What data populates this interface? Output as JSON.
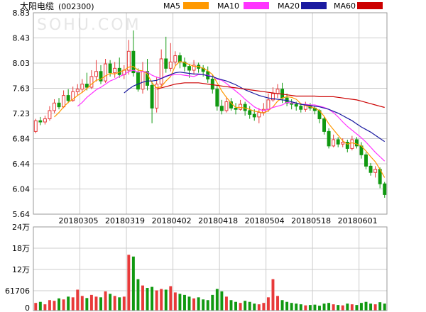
{
  "chart_data": {
    "type": "candlestick",
    "title": "太阳电缆",
    "code": "(002300)",
    "watermark": "SOHU.COM",
    "legend": [
      {
        "name": "MA5",
        "color": "#ff9900"
      },
      {
        "name": "MA10",
        "color": "#ff33ff"
      },
      {
        "name": "MA20",
        "color": "#1a1aa0"
      },
      {
        "name": "MA60",
        "color": "#cc0000"
      }
    ],
    "colors": {
      "up": "#e83a3a",
      "down": "#119911",
      "grid": "#cccccc"
    },
    "price_axis": {
      "ticks": [
        "8.83",
        "8.43",
        "8.03",
        "7.63",
        "7.23",
        "6.84",
        "6.44",
        "6.04",
        "5.64"
      ],
      "ylim": [
        5.64,
        8.83
      ]
    },
    "volume_axis": {
      "ticks": [
        "24万",
        "18万",
        "12万",
        "61706",
        "0"
      ],
      "ylim": [
        0,
        240000
      ]
    },
    "x_labels": [
      {
        "label": "20180305",
        "index": 10
      },
      {
        "label": "20180319",
        "index": 20
      },
      {
        "label": "20180402",
        "index": 30
      },
      {
        "label": "20180418",
        "index": 40
      },
      {
        "label": "20180504",
        "index": 50
      },
      {
        "label": "20180518",
        "index": 60
      },
      {
        "label": "20180601",
        "index": 70
      }
    ],
    "candles": [
      [
        6.95,
        7.12,
        7.15,
        6.92
      ],
      [
        7.12,
        7.1,
        7.18,
        7.05
      ],
      [
        7.1,
        7.15,
        7.2,
        7.06
      ],
      [
        7.15,
        7.28,
        7.35,
        7.12
      ],
      [
        7.28,
        7.4,
        7.46,
        7.24
      ],
      [
        7.4,
        7.34,
        7.48,
        7.3
      ],
      [
        7.34,
        7.52,
        7.6,
        7.32
      ],
      [
        7.52,
        7.44,
        7.62,
        7.4
      ],
      [
        7.44,
        7.58,
        7.66,
        7.42
      ],
      [
        7.58,
        7.62,
        7.7,
        7.52
      ],
      [
        7.62,
        7.7,
        7.78,
        7.56
      ],
      [
        7.7,
        7.65,
        7.88,
        7.6
      ],
      [
        7.65,
        7.82,
        7.92,
        7.62
      ],
      [
        7.82,
        7.9,
        8.08,
        7.74
      ],
      [
        7.9,
        7.75,
        8.0,
        7.7
      ],
      [
        7.75,
        8.02,
        8.1,
        7.72
      ],
      [
        8.02,
        7.88,
        8.08,
        7.82
      ],
      [
        7.88,
        7.95,
        8.05,
        7.8
      ],
      [
        7.95,
        7.85,
        8.12,
        7.8
      ],
      [
        7.85,
        7.92,
        8.0,
        7.78
      ],
      [
        7.92,
        8.22,
        8.4,
        7.85
      ],
      [
        8.22,
        7.88,
        8.55,
        7.82
      ],
      [
        7.88,
        7.62,
        7.95,
        7.58
      ],
      [
        7.62,
        7.9,
        8.05,
        7.55
      ],
      [
        7.9,
        7.68,
        8.1,
        7.6
      ],
      [
        7.68,
        7.32,
        7.75,
        7.08
      ],
      [
        7.32,
        7.7,
        7.82,
        7.25
      ],
      [
        7.7,
        8.1,
        8.25,
        7.65
      ],
      [
        8.1,
        7.95,
        8.45,
        7.88
      ],
      [
        7.95,
        8.05,
        8.35,
        7.9
      ],
      [
        8.05,
        8.15,
        8.22,
        7.98
      ],
      [
        8.15,
        8.05,
        8.2,
        7.95
      ],
      [
        8.05,
        7.98,
        8.12,
        7.9
      ],
      [
        7.98,
        7.92,
        8.02,
        7.8
      ],
      [
        7.92,
        8.0,
        8.08,
        7.85
      ],
      [
        8.0,
        7.95,
        8.04,
        7.88
      ],
      [
        7.95,
        7.9,
        8.0,
        7.82
      ],
      [
        7.9,
        7.78,
        7.98,
        7.72
      ],
      [
        7.78,
        7.62,
        7.85,
        7.55
      ],
      [
        7.62,
        7.35,
        7.68,
        7.28
      ],
      [
        7.35,
        7.28,
        7.45,
        7.22
      ],
      [
        7.28,
        7.42,
        7.5,
        7.25
      ],
      [
        7.42,
        7.32,
        7.48,
        7.28
      ],
      [
        7.32,
        7.3,
        7.4,
        7.22
      ],
      [
        7.3,
        7.38,
        7.45,
        7.28
      ],
      [
        7.38,
        7.28,
        7.42,
        7.2
      ],
      [
        7.28,
        7.22,
        7.35,
        7.15
      ],
      [
        7.22,
        7.18,
        7.3,
        7.12
      ],
      [
        7.18,
        7.25,
        7.32,
        7.08
      ],
      [
        7.25,
        7.3,
        7.4,
        7.2
      ],
      [
        7.3,
        7.45,
        7.55,
        7.26
      ],
      [
        7.45,
        7.55,
        7.65,
        7.42
      ],
      [
        7.55,
        7.62,
        7.7,
        7.48
      ],
      [
        7.62,
        7.48,
        7.72,
        7.4
      ],
      [
        7.48,
        7.4,
        7.55,
        7.35
      ],
      [
        7.4,
        7.38,
        7.46,
        7.3
      ],
      [
        7.38,
        7.35,
        7.42,
        7.28
      ],
      [
        7.35,
        7.3,
        7.4,
        7.25
      ],
      [
        7.3,
        7.36,
        7.42,
        7.26
      ],
      [
        7.36,
        7.32,
        7.4,
        7.28
      ],
      [
        7.32,
        7.28,
        7.36,
        7.22
      ],
      [
        7.28,
        7.15,
        7.3,
        7.08
      ],
      [
        7.15,
        6.95,
        7.18,
        6.9
      ],
      [
        6.95,
        6.72,
        7.0,
        6.68
      ],
      [
        6.72,
        6.82,
        6.9,
        6.7
      ],
      [
        6.82,
        6.75,
        6.86,
        6.7
      ],
      [
        6.75,
        6.78,
        6.84,
        6.7
      ],
      [
        6.78,
        6.68,
        6.82,
        6.62
      ],
      [
        6.68,
        6.82,
        6.88,
        6.65
      ],
      [
        6.82,
        6.72,
        6.86,
        6.68
      ],
      [
        6.72,
        6.58,
        6.78,
        6.52
      ],
      [
        6.58,
        6.4,
        6.62,
        6.35
      ],
      [
        6.4,
        6.3,
        6.45,
        6.25
      ],
      [
        6.3,
        6.35,
        6.4,
        6.22
      ],
      [
        6.35,
        6.12,
        6.38,
        6.05
      ],
      [
        6.12,
        5.95,
        6.15,
        5.9
      ]
    ],
    "volume": [
      22000,
      25000,
      18000,
      30000,
      28000,
      35000,
      32000,
      40000,
      38000,
      60000,
      42000,
      36000,
      45000,
      40000,
      38000,
      55000,
      48000,
      42000,
      38000,
      40000,
      160000,
      155000,
      90000,
      72000,
      65000,
      68000,
      58000,
      62000,
      60000,
      70000,
      52000,
      48000,
      45000,
      40000,
      35000,
      38000,
      32000,
      30000,
      45000,
      62000,
      55000,
      40000,
      30000,
      25000,
      22000,
      28000,
      25000,
      20000,
      18000,
      22000,
      38000,
      90000,
      42000,
      30000,
      25000,
      22000,
      20000,
      18000,
      15000,
      16000,
      17000,
      14000,
      20000,
      22000,
      18000,
      16000,
      15000,
      20000,
      18000,
      16000,
      22000,
      25000,
      20000,
      18000,
      24000,
      20000
    ],
    "ma5": [
      null,
      null,
      null,
      null,
      7.18,
      7.25,
      7.34,
      7.41,
      7.46,
      7.52,
      7.57,
      7.63,
      7.7,
      7.76,
      7.78,
      7.83,
      7.87,
      7.86,
      7.89,
      7.92,
      7.97,
      7.98,
      7.92,
      7.91,
      7.86,
      7.72,
      7.64,
      7.66,
      7.75,
      7.82,
      7.99,
      8.06,
      8.04,
      8.01,
      7.98,
      7.98,
      7.95,
      7.91,
      7.85,
      7.72,
      7.59,
      7.49,
      7.4,
      7.33,
      7.33,
      7.32,
      7.3,
      7.27,
      7.26,
      7.24,
      7.28,
      7.34,
      7.43,
      7.48,
      7.5,
      7.49,
      7.46,
      7.39,
      7.36,
      7.34,
      7.32,
      7.28,
      7.19,
      7.07,
      6.98,
      6.89,
      6.8,
      6.75,
      6.77,
      6.75,
      6.72,
      6.64,
      6.55,
      6.47,
      6.35,
      6.22
    ],
    "ma10": [
      null,
      null,
      null,
      null,
      null,
      null,
      null,
      null,
      null,
      7.35,
      7.41,
      7.49,
      7.55,
      7.61,
      7.65,
      7.7,
      7.75,
      7.78,
      7.82,
      7.85,
      7.9,
      7.92,
      7.89,
      7.9,
      7.89,
      7.84,
      7.81,
      7.79,
      7.83,
      7.84,
      7.85,
      7.85,
      7.84,
      7.83,
      7.82,
      7.85,
      7.85,
      7.84,
      7.82,
      7.78,
      7.76,
      7.71,
      7.65,
      7.59,
      7.53,
      7.46,
      7.4,
      7.34,
      7.3,
      7.28,
      7.3,
      7.33,
      7.35,
      7.37,
      7.41,
      7.4,
      7.4,
      7.38,
      7.38,
      7.37,
      7.37,
      7.35,
      7.33,
      7.3,
      7.25,
      7.18,
      7.1,
      7.03,
      6.97,
      6.91,
      6.85,
      6.78,
      6.7,
      6.62,
      6.55,
      6.48
    ],
    "ma20": [
      null,
      null,
      null,
      null,
      null,
      null,
      null,
      null,
      null,
      null,
      null,
      null,
      null,
      null,
      null,
      null,
      null,
      null,
      null,
      7.56,
      7.62,
      7.67,
      7.7,
      7.73,
      7.75,
      7.75,
      7.76,
      7.79,
      7.82,
      7.85,
      7.88,
      7.89,
      7.88,
      7.87,
      7.86,
      7.86,
      7.85,
      7.83,
      7.82,
      7.79,
      7.77,
      7.75,
      7.72,
      7.69,
      7.65,
      7.61,
      7.58,
      7.55,
      7.52,
      7.5,
      7.48,
      7.47,
      7.46,
      7.45,
      7.44,
      7.42,
      7.4,
      7.38,
      7.37,
      7.36,
      7.35,
      7.34,
      7.32,
      7.3,
      7.27,
      7.24,
      7.2,
      7.16,
      7.12,
      7.07,
      7.02,
      6.98,
      6.94,
      6.89,
      6.84,
      6.79
    ],
    "ma60": [
      null,
      null,
      null,
      null,
      null,
      null,
      null,
      null,
      null,
      null,
      null,
      null,
      null,
      null,
      null,
      null,
      null,
      null,
      null,
      null,
      null,
      null,
      null,
      null,
      null,
      null,
      7.62,
      7.64,
      7.66,
      7.68,
      7.7,
      7.71,
      7.72,
      7.72,
      7.72,
      7.72,
      7.71,
      7.7,
      7.69,
      7.68,
      7.67,
      7.66,
      7.65,
      7.64,
      7.63,
      7.62,
      7.61,
      7.6,
      7.59,
      7.58,
      7.57,
      7.56,
      7.55,
      7.54,
      7.53,
      7.52,
      7.51,
      7.51,
      7.51,
      7.51,
      7.51,
      7.5,
      7.5,
      7.5,
      7.5,
      7.49,
      7.48,
      7.47,
      7.46,
      7.45,
      7.43,
      7.41,
      7.39,
      7.37,
      7.35,
      7.33
    ]
  }
}
